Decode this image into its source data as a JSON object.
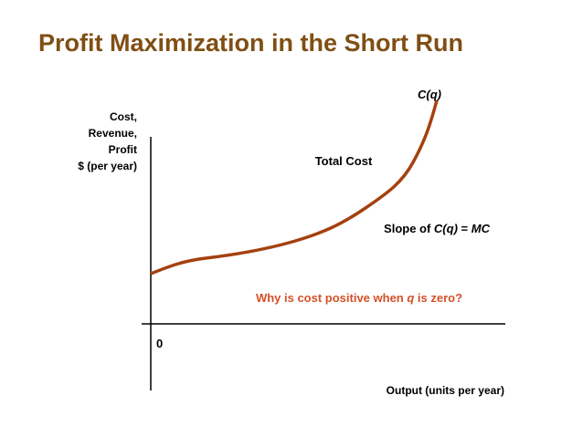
{
  "title": "Profit Maximization in the Short Run",
  "y_axis_label": [
    "Cost,",
    "Revenue,",
    "Profit",
    "$ (per year)"
  ],
  "x_axis_label": "Output (units per year)",
  "origin_label": "0",
  "curve": {
    "name": "C(q)",
    "label": "Total Cost",
    "slope": [
      "Slope of ",
      "C(q)",
      " = ",
      "MC"
    ]
  },
  "question": [
    "Why is cost positive when ",
    "q",
    " is zero?"
  ]
}
